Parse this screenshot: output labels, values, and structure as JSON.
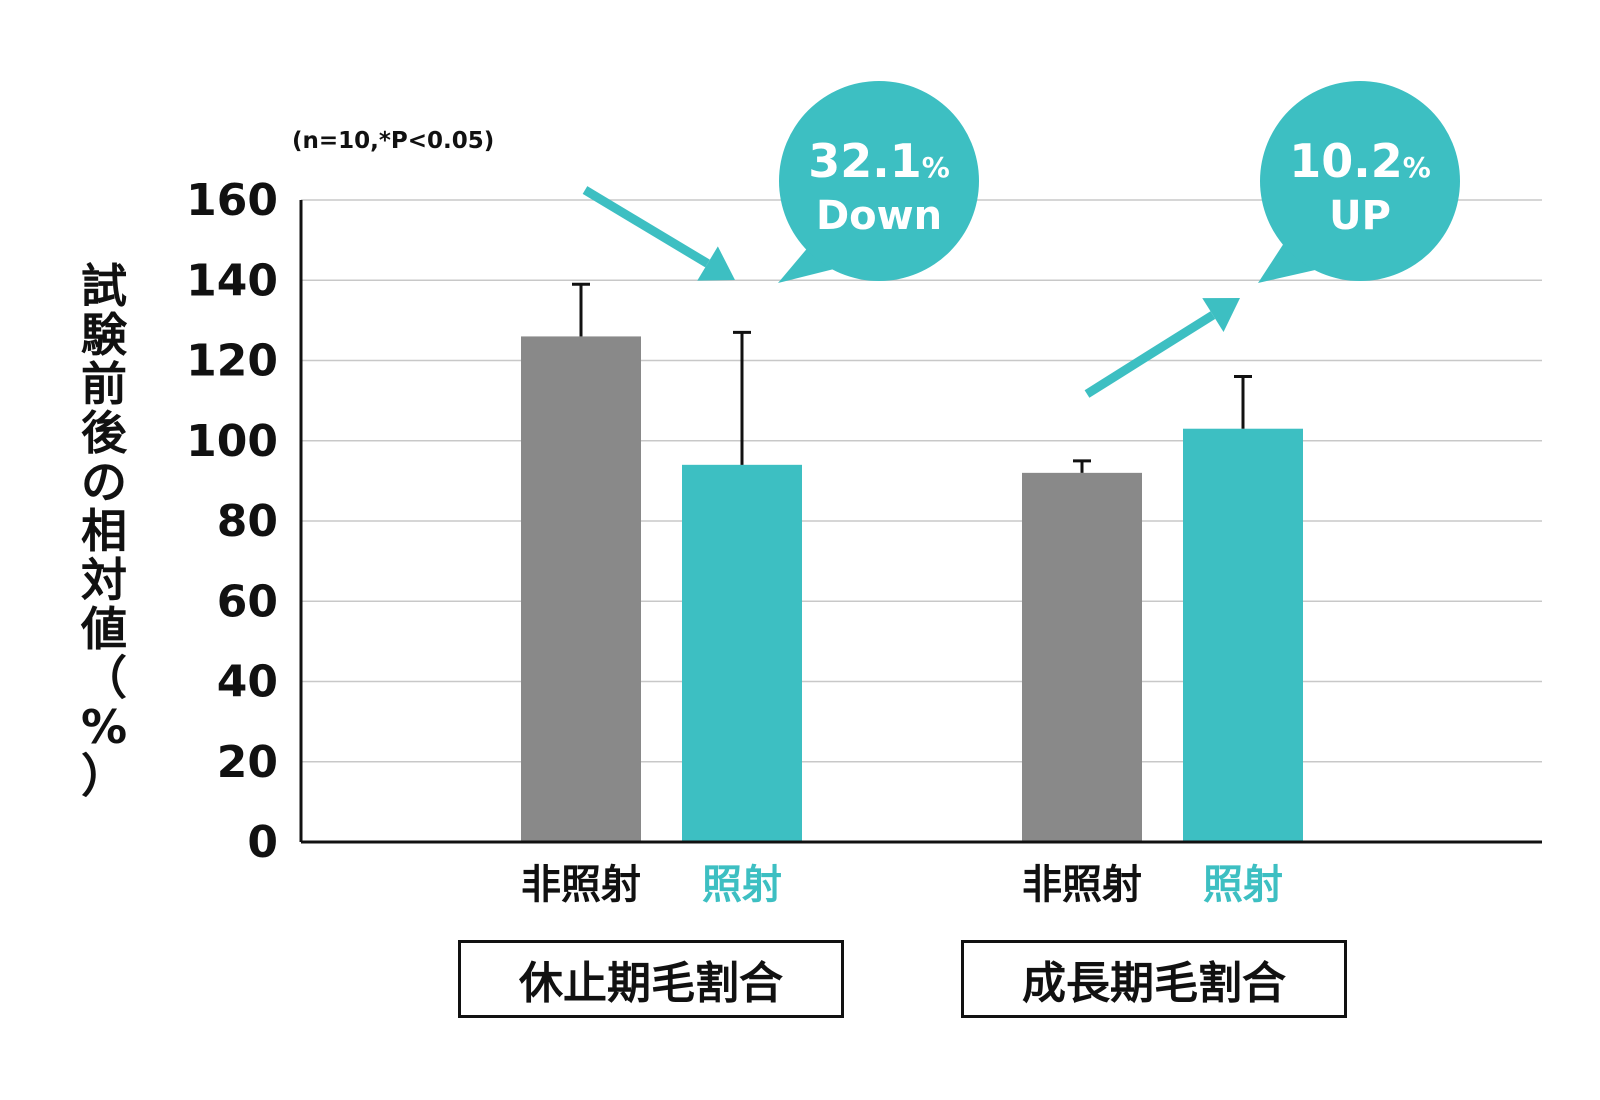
{
  "chart_data": {
    "type": "bar",
    "note": "(n=10,*P<0.05)",
    "ylabel": "試験前後の相対値（%）",
    "ylim": [
      0,
      160
    ],
    "yticks": [
      0,
      20,
      40,
      60,
      80,
      100,
      120,
      140,
      160
    ],
    "grid": true,
    "colors": {
      "non_irradiated": "#898989",
      "irradiated": "#3dbfc2",
      "axis": "#111111",
      "grid": "#c8c8c8"
    },
    "groups": [
      {
        "label": "休止期毛割合",
        "bars": [
          {
            "label": "非照射",
            "value": 126,
            "error_top": 139,
            "color": "#898989",
            "label_color": "#111111"
          },
          {
            "label": "照射",
            "value": 94,
            "error_top": 127,
            "color": "#3dbfc2",
            "label_color": "#3dbfc2"
          }
        ],
        "callout": {
          "value": "32.1",
          "unit": "%",
          "text": "Down"
        }
      },
      {
        "label": "成長期毛割合",
        "bars": [
          {
            "label": "非照射",
            "value": 92,
            "error_top": 95,
            "color": "#898989",
            "label_color": "#111111"
          },
          {
            "label": "照射",
            "value": 103,
            "error_top": 116,
            "color": "#3dbfc2",
            "label_color": "#3dbfc2"
          }
        ],
        "callout": {
          "value": "10.2",
          "unit": "%",
          "text": "UP"
        }
      }
    ]
  }
}
